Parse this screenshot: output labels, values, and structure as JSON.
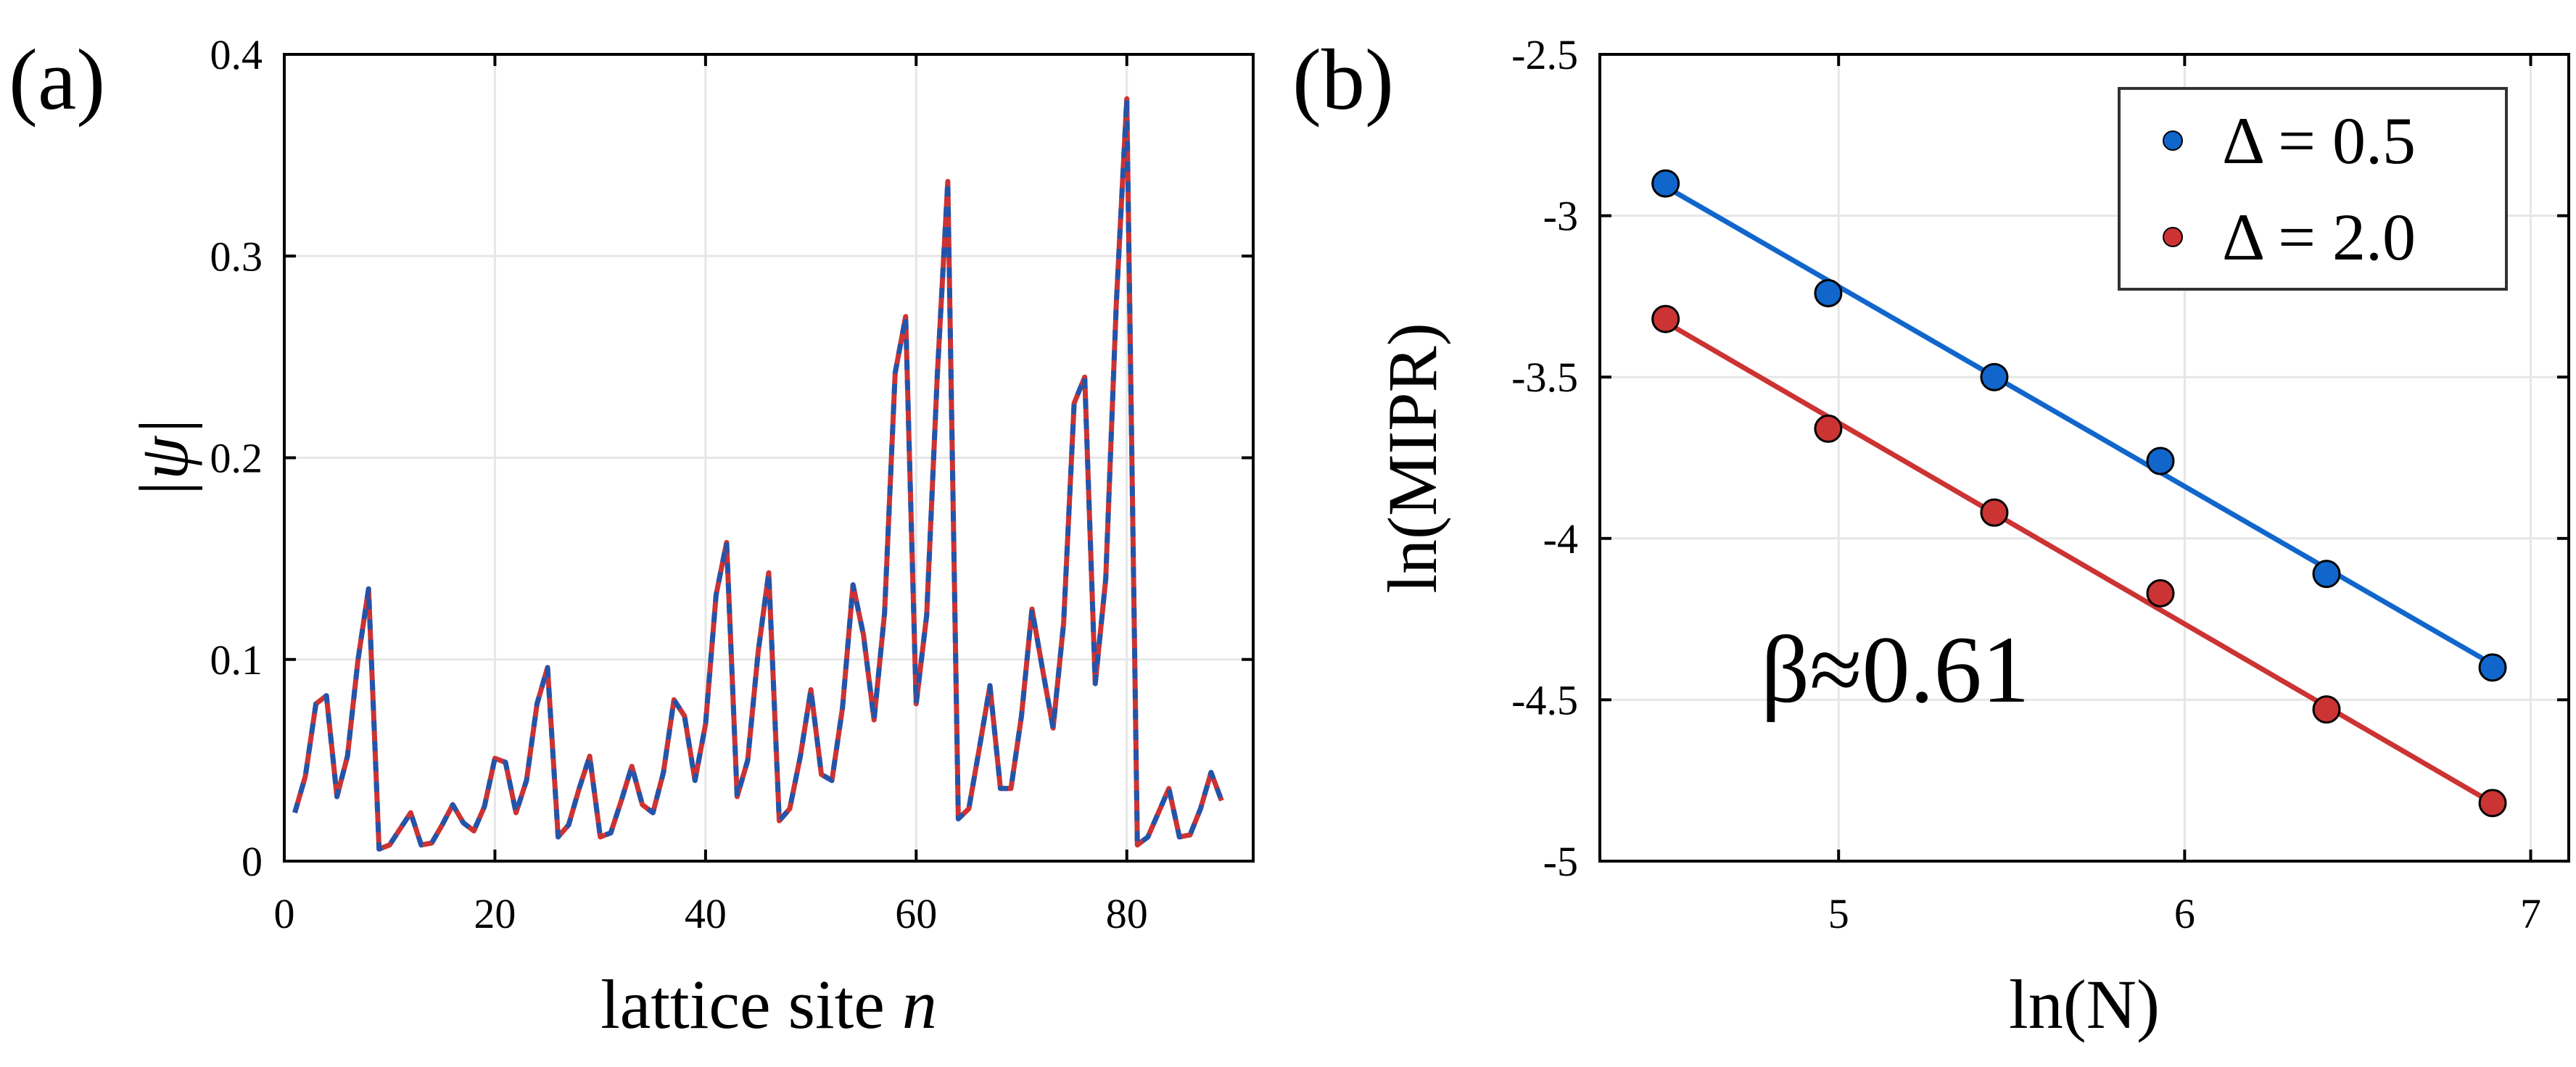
{
  "chart_data": [
    {
      "panel_label": "(a)",
      "type": "line",
      "xlabel": "lattice site n",
      "xlabel_text": "lattice site ",
      "xlabel_var": "n",
      "ylabel": "|ψ|",
      "xlim": [
        0,
        92
      ],
      "ylim": [
        0,
        0.4
      ],
      "xticks": [
        0,
        20,
        40,
        60,
        80
      ],
      "xtick_labels": [
        "0",
        "20",
        "40",
        "60",
        "80"
      ],
      "yticks": [
        0,
        0.1,
        0.2,
        0.3,
        0.4
      ],
      "ytick_labels": [
        "0",
        "0.1",
        "0.2",
        "0.3",
        "0.4"
      ],
      "grid": true,
      "series": [
        {
          "name": "red solid",
          "color": "#cc3333",
          "style": "solid"
        },
        {
          "name": "blue dashed",
          "color": "#2255aa",
          "style": "dashed"
        }
      ],
      "x": [
        1,
        2,
        3,
        4,
        5,
        6,
        7,
        8,
        9,
        10,
        11,
        12,
        13,
        14,
        15,
        16,
        17,
        18,
        19,
        20,
        21,
        22,
        23,
        24,
        25,
        26,
        27,
        28,
        29,
        30,
        31,
        32,
        33,
        34,
        35,
        36,
        37,
        38,
        39,
        40,
        41,
        42,
        43,
        44,
        45,
        46,
        47,
        48,
        49,
        50,
        51,
        52,
        53,
        54,
        55,
        56,
        57,
        58,
        59,
        60,
        61,
        62,
        63,
        64,
        65,
        66,
        67,
        68,
        69,
        70,
        71,
        72,
        73,
        74,
        75,
        76,
        77,
        78,
        79,
        80,
        81,
        82,
        83,
        84,
        85,
        86,
        87,
        88,
        89
      ],
      "values": [
        0.024,
        0.042,
        0.078,
        0.082,
        0.032,
        0.052,
        0.1,
        0.135,
        0.006,
        0.008,
        0.016,
        0.024,
        0.008,
        0.009,
        0.018,
        0.028,
        0.019,
        0.015,
        0.027,
        0.051,
        0.049,
        0.024,
        0.04,
        0.078,
        0.096,
        0.012,
        0.018,
        0.036,
        0.052,
        0.012,
        0.014,
        0.03,
        0.047,
        0.028,
        0.024,
        0.044,
        0.08,
        0.072,
        0.04,
        0.068,
        0.132,
        0.158,
        0.032,
        0.05,
        0.104,
        0.143,
        0.02,
        0.026,
        0.052,
        0.085,
        0.043,
        0.04,
        0.076,
        0.137,
        0.112,
        0.07,
        0.123,
        0.242,
        0.27,
        0.078,
        0.122,
        0.24,
        0.337,
        0.021,
        0.026,
        0.056,
        0.087,
        0.036,
        0.036,
        0.072,
        0.125,
        0.095,
        0.066,
        0.118,
        0.227,
        0.24,
        0.088,
        0.14,
        0.276,
        0.378,
        0.008,
        0.012,
        0.024,
        0.036,
        0.012,
        0.013,
        0.026,
        0.044,
        0.03
      ]
    },
    {
      "panel_label": "(b)",
      "type": "scatter",
      "xlabel": "ln(N)",
      "ylabel": "ln(MIPR)",
      "xlim": [
        4.31,
        7.11
      ],
      "ylim": [
        -5,
        -2.5
      ],
      "xticks": [
        5,
        6,
        7
      ],
      "xtick_labels": [
        "5",
        "6",
        "7"
      ],
      "yticks": [
        -2.5,
        -3,
        -3.5,
        -4,
        -4.5,
        -5
      ],
      "ytick_labels": [
        "-2.5",
        "-3",
        "-3.5",
        "-4",
        "-4.5",
        "-5"
      ],
      "grid": true,
      "legend_position": "top-right",
      "annotation": "β≈0.61",
      "series": [
        {
          "name": "Δ = 0.5",
          "color": "#1166cc",
          "x": [
            4.5,
            4.97,
            5.45,
            5.93,
            6.41,
            6.89
          ],
          "y": [
            -2.9,
            -3.24,
            -3.5,
            -3.76,
            -4.11,
            -4.4
          ],
          "fit": {
            "x": [
              4.5,
              6.89
            ],
            "y": [
              -2.91,
              -4.39
            ]
          }
        },
        {
          "name": "Δ = 2.0",
          "color": "#cc3333",
          "x": [
            4.5,
            4.97,
            5.45,
            5.93,
            6.41,
            6.89
          ],
          "y": [
            -3.32,
            -3.66,
            -3.92,
            -4.17,
            -4.53,
            -4.82
          ],
          "fit": {
            "x": [
              4.5,
              6.89
            ],
            "y": [
              -3.33,
              -4.82
            ]
          }
        }
      ]
    }
  ]
}
